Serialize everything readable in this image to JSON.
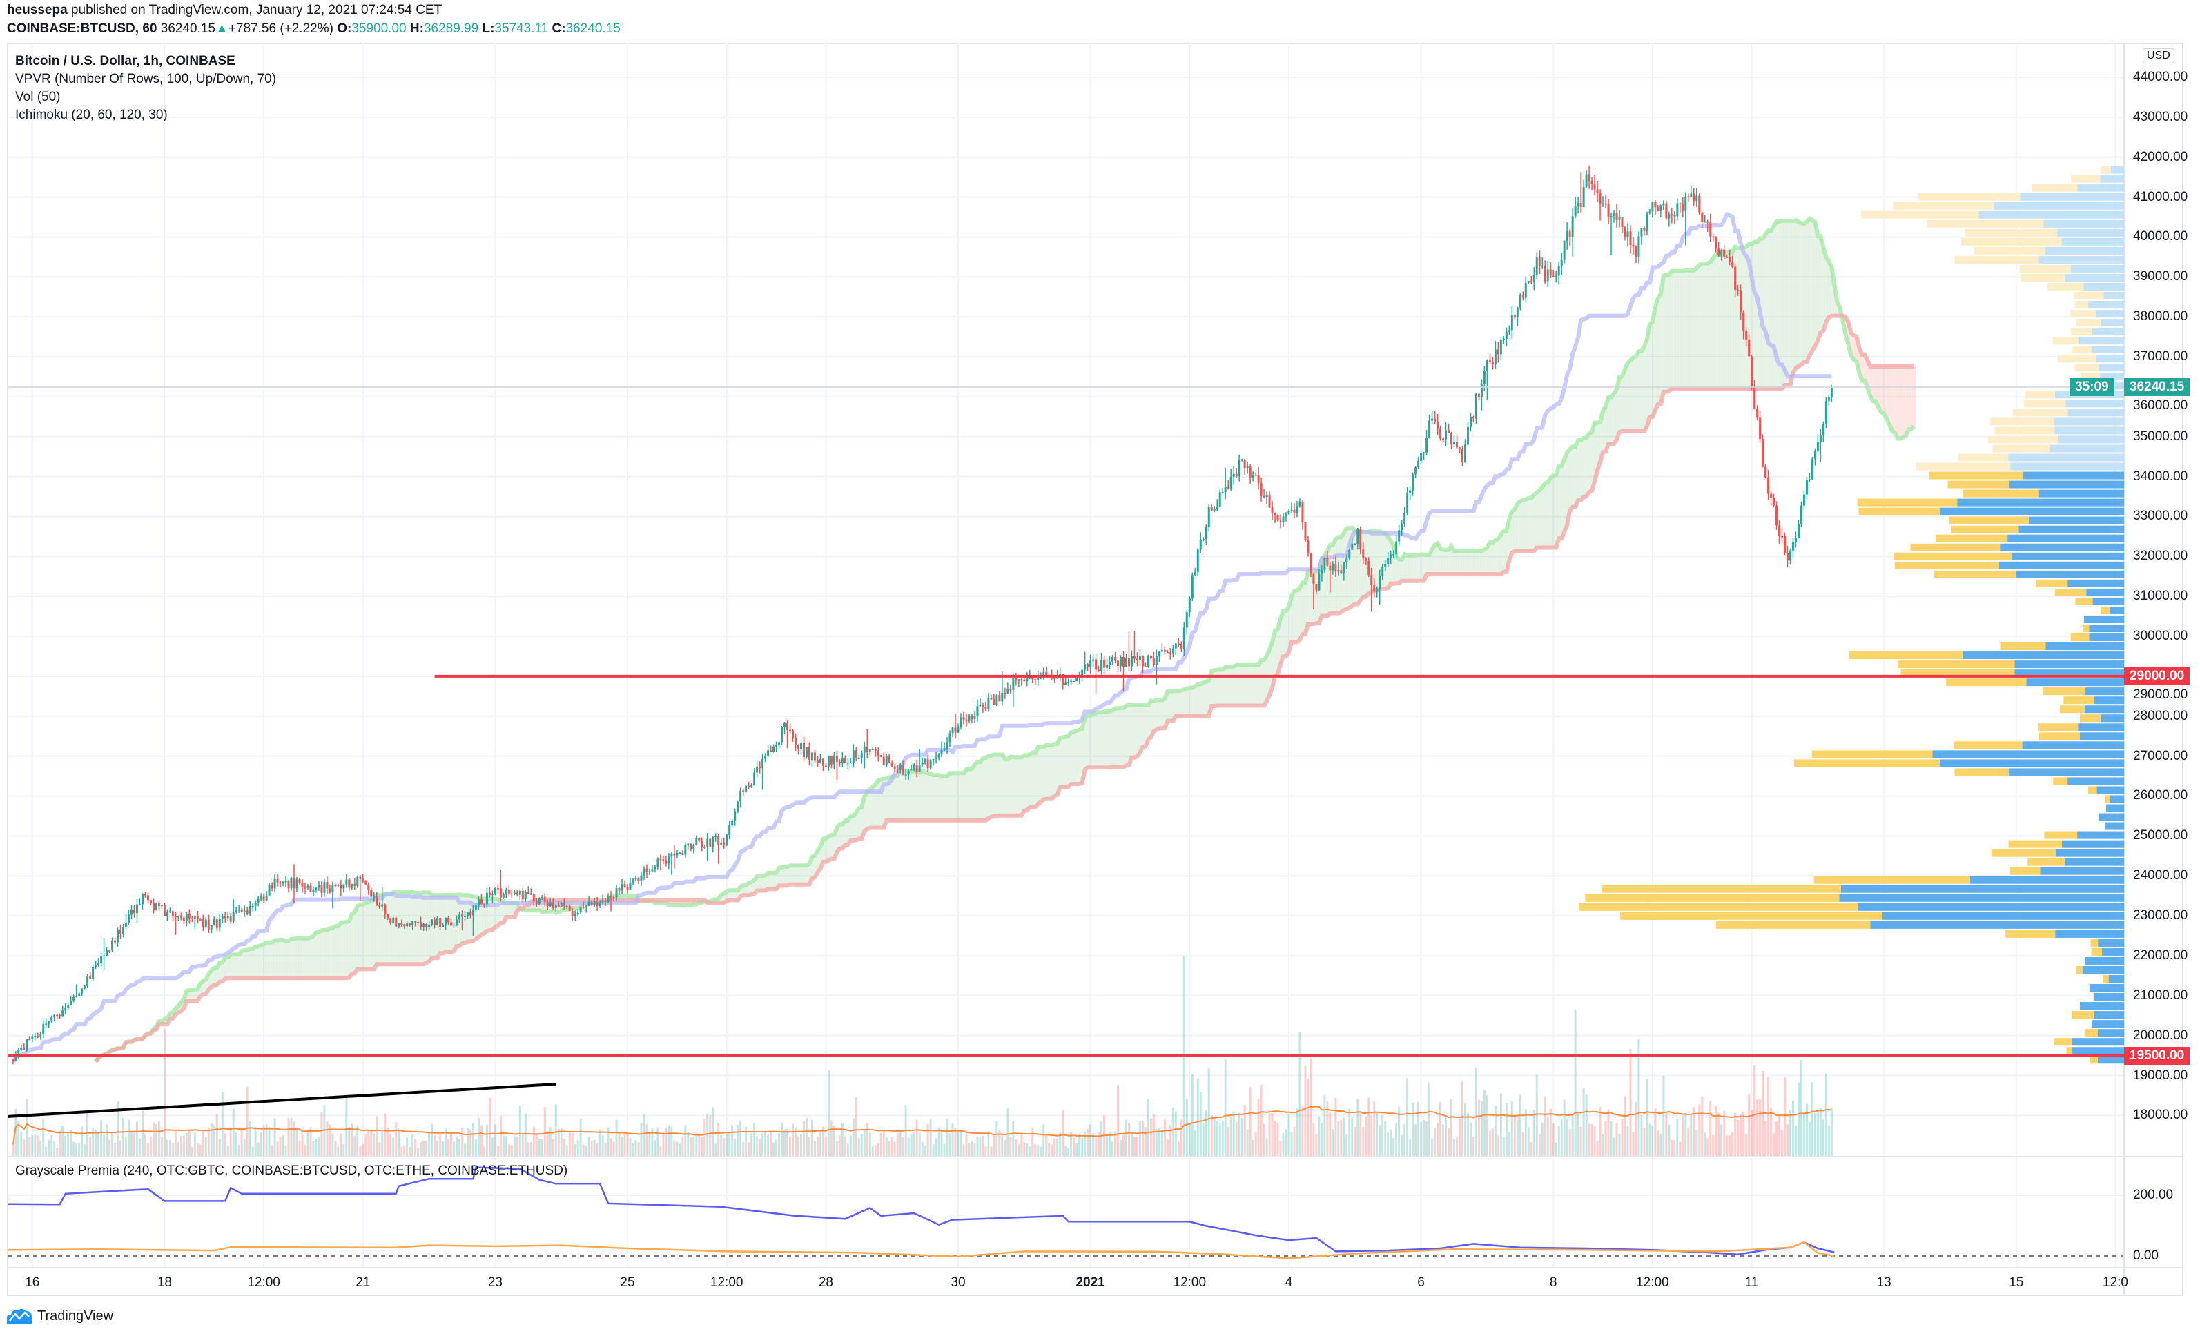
{
  "header": {
    "author": "heussepa",
    "published": " published on TradingView.com, January 12, 2021 07:24:54 CET",
    "symbol": "COINBASE:BTCUSD, 60",
    "last": "36240.15",
    "change": "+787.56 (+2.22%)",
    "o_label": "O:",
    "o": "35900.00",
    "h_label": "H:",
    "h": "36289.99",
    "l_label": "L:",
    "l": "35743.11",
    "c_label": "C:",
    "c": "36240.15"
  },
  "legend": {
    "title": "Bitcoin / U.S. Dollar, 1h, COINBASE",
    "vpvr": "VPVR (Number Of Rows, 100, Up/Down, 70)",
    "vol": "Vol (50)",
    "ichimoku": "Ichimoku (20, 60, 120, 30)",
    "sub": "Grayscale Premia (240, OTC:GBTC, COINBASE:BTCUSD, OTC:ETHE, COINBASE:ETHUSD)"
  },
  "currency": "USD",
  "branding": "TradingView",
  "colors": {
    "up": "#26a69a",
    "down": "#ef5350",
    "level": "#f23645",
    "vpvr_up": "#5dadec",
    "vpvr_down": "#fad46b",
    "vpvr_up_faded": "#c4e2f7",
    "vpvr_down_faded": "#fdeec9",
    "kijun": "#b2b5f8",
    "span_a": "#a5e8a5",
    "span_b": "#f4a9a6",
    "premia_btc": "#5b5bf5",
    "premia_eth": "#ffa94d",
    "vol_ma": "#ff8a3d",
    "trendline": "#000000"
  },
  "price_tags": {
    "last": "36240.15",
    "countdown": "35:09",
    "level_high": "29000.00",
    "level_low": "19500.00"
  },
  "chart_data": [
    {
      "type": "candlestick",
      "interval": "1h",
      "ylim": [
        17000,
        44500
      ],
      "price_ticks": [
        "18000.00",
        "19000.00",
        "20000.00",
        "21000.00",
        "22000.00",
        "23000.00",
        "24000.00",
        "25000.00",
        "26000.00",
        "27000.00",
        "28000.00",
        "29000.00",
        "30000.00",
        "31000.00",
        "32000.00",
        "33000.00",
        "34000.00",
        "35000.00",
        "36000.00",
        "37000.00",
        "38000.00",
        "39000.00",
        "40000.00",
        "41000.00",
        "42000.00",
        "43000.00",
        "44000.00"
      ],
      "time_ticks": [
        {
          "x": "2020-12-16T00:00",
          "label": "16"
        },
        {
          "x": "2020-12-18T00:00",
          "label": "18"
        },
        {
          "x": "2020-12-19T12:00",
          "label": "12:00"
        },
        {
          "x": "2020-12-21T00:00",
          "label": "21"
        },
        {
          "x": "2020-12-23T00:00",
          "label": "23"
        },
        {
          "x": "2020-12-25T00:00",
          "label": "25"
        },
        {
          "x": "2020-12-26T12:00",
          "label": "12:00"
        },
        {
          "x": "2020-12-28T00:00",
          "label": "28"
        },
        {
          "x": "2020-12-30T00:00",
          "label": "30"
        },
        {
          "x": "2021-01-01T00:00",
          "label": "2021"
        },
        {
          "x": "2021-01-02T12:00",
          "label": "12:00"
        },
        {
          "x": "2021-01-04T00:00",
          "label": "4"
        },
        {
          "x": "2021-01-06T00:00",
          "label": "6"
        },
        {
          "x": "2021-01-08T00:00",
          "label": "8"
        },
        {
          "x": "2021-01-09T12:00",
          "label": "12:00"
        },
        {
          "x": "2021-01-11T00:00",
          "label": "11"
        },
        {
          "x": "2021-01-13T00:00",
          "label": "13"
        },
        {
          "x": "2021-01-15T00:00",
          "label": "15"
        },
        {
          "x": "2021-01-16T12:00",
          "label": "12:0"
        }
      ],
      "close_path": [
        [
          "2020-12-15T17:00",
          19400
        ],
        [
          "2020-12-16T14:00",
          20800
        ],
        [
          "2020-12-17T00:00",
          21700
        ],
        [
          "2020-12-17T10:00",
          22750
        ],
        [
          "2020-12-17T17:00",
          23450
        ],
        [
          "2020-12-18T01:00",
          23100
        ],
        [
          "2020-12-18T17:00",
          22750
        ],
        [
          "2020-12-19T07:00",
          23100
        ],
        [
          "2020-12-19T18:00",
          23850
        ],
        [
          "2020-12-20T10:00",
          23700
        ],
        [
          "2020-12-21T00:00",
          23850
        ],
        [
          "2020-12-21T13:00",
          22750
        ],
        [
          "2020-12-21T22:00",
          22800
        ],
        [
          "2020-12-22T12:00",
          22900
        ],
        [
          "2020-12-23T00:00",
          23600
        ],
        [
          "2020-12-23T14:00",
          23450
        ],
        [
          "2020-12-24T05:00",
          23100
        ],
        [
          "2020-12-24T19:00",
          23450
        ],
        [
          "2020-12-25T12:00",
          24300
        ],
        [
          "2020-12-26T02:00",
          24850
        ],
        [
          "2020-12-26T12:00",
          24900
        ],
        [
          "2020-12-26T17:00",
          25900
        ],
        [
          "2020-12-27T02:00",
          26800
        ],
        [
          "2020-12-27T10:00",
          27700
        ],
        [
          "2020-12-27T17:00",
          27100
        ],
        [
          "2020-12-28T00:00",
          26800
        ],
        [
          "2020-12-28T16:00",
          27100
        ],
        [
          "2020-12-29T07:00",
          26600
        ],
        [
          "2020-12-29T17:00",
          26950
        ],
        [
          "2020-12-30T02:00",
          27850
        ],
        [
          "2020-12-30T13:00",
          28350
        ],
        [
          "2020-12-31T00:00",
          29050
        ],
        [
          "2020-12-31T14:00",
          28900
        ],
        [
          "2021-01-01T07:00",
          29400
        ],
        [
          "2021-01-01T22:00",
          29400
        ],
        [
          "2021-01-02T10:00",
          29750
        ],
        [
          "2021-01-02T14:00",
          31500
        ],
        [
          "2021-01-02T20:00",
          33100
        ],
        [
          "2021-01-03T07:00",
          34300
        ],
        [
          "2021-01-03T14:00",
          33800
        ],
        [
          "2021-01-03T22:00",
          32900
        ],
        [
          "2021-01-04T05:00",
          33450
        ],
        [
          "2021-01-04T10:00",
          31150
        ],
        [
          "2021-01-04T14:00",
          31900
        ],
        [
          "2021-01-04T20:00",
          31500
        ],
        [
          "2021-01-05T02:00",
          32600
        ],
        [
          "2021-01-05T07:00",
          31150
        ],
        [
          "2021-01-05T14:00",
          31900
        ],
        [
          "2021-01-05T22:00",
          34000
        ],
        [
          "2021-01-06T05:00",
          35400
        ],
        [
          "2021-01-06T16:00",
          34500
        ],
        [
          "2021-01-06T23:00",
          36450
        ],
        [
          "2021-01-07T07:00",
          37500
        ],
        [
          "2021-01-07T14:00",
          38550
        ],
        [
          "2021-01-07T19:00",
          39450
        ],
        [
          "2021-01-08T00:00",
          38900
        ],
        [
          "2021-01-08T05:00",
          39800
        ],
        [
          "2021-01-08T14:00",
          41550
        ],
        [
          "2021-01-08T19:00",
          40850
        ],
        [
          "2021-01-09T02:00",
          40300
        ],
        [
          "2021-01-09T07:00",
          39600
        ],
        [
          "2021-01-09T12:00",
          40850
        ],
        [
          "2021-01-09T20:00",
          40650
        ],
        [
          "2021-01-10T04:00",
          41000
        ],
        [
          "2021-01-10T12:00",
          39800
        ],
        [
          "2021-01-10T19:00",
          38900
        ],
        [
          "2021-01-11T00:00",
          36800
        ],
        [
          "2021-01-11T05:00",
          34300
        ],
        [
          "2021-01-11T10:00",
          32900
        ],
        [
          "2021-01-11T14:00",
          31900
        ],
        [
          "2021-01-11T18:00",
          32900
        ],
        [
          "2021-01-12T00:00",
          34700
        ],
        [
          "2021-01-12T06:00",
          36240.15
        ]
      ],
      "levels": [
        {
          "price": 29000,
          "from": "2020-12-22T02:00"
        },
        {
          "price": 19500,
          "from": "2020-12-15T14:00"
        }
      ],
      "trendline": [
        [
          "2020-12-15T15:00",
          17972
        ],
        [
          "2020-12-23T22:00",
          18784
        ]
      ]
    },
    {
      "type": "line",
      "title": "Grayscale Premia (240, OTC:GBTC, COINBASE:BTCUSD, OTC:ETHE, COINBASE:ETHUSD)",
      "y_ticks": [
        "200.00",
        "0.00"
      ],
      "series": [
        {
          "values": [
            [
              "2020-12-15T15:00",
              171
            ],
            [
              "2020-12-16T10:00",
              170
            ],
            [
              "2020-12-16T12:00",
              205
            ],
            [
              "2020-12-17T18:00",
              220
            ],
            [
              "2020-12-18T00:00",
              181
            ],
            [
              "2020-12-18T22:00",
              181
            ],
            [
              "2020-12-19T00:00",
              224
            ],
            [
              "2020-12-19T04:00",
              205
            ],
            [
              "2020-12-21T12:00",
              205
            ],
            [
              "2020-12-21T13:00",
              230
            ],
            [
              "2020-12-22T00:00",
              254
            ],
            [
              "2020-12-22T16:00",
              254
            ],
            [
              "2020-12-22T17:00",
              292
            ],
            [
              "2020-12-23T09:00",
              287
            ],
            [
              "2020-12-23T16:00",
              251
            ],
            [
              "2020-12-23T22:00",
              238
            ],
            [
              "2020-12-24T14:00",
              238
            ],
            [
              "2020-12-24T17:00",
              173
            ],
            [
              "2020-12-26T10:00",
              162
            ],
            [
              "2020-12-27T12:00",
              133
            ],
            [
              "2020-12-28T07:00",
              122
            ],
            [
              "2020-12-28T16:00",
              158
            ],
            [
              "2020-12-28T20:00",
              132
            ],
            [
              "2020-12-29T08:00",
              141
            ],
            [
              "2020-12-29T17:00",
              103
            ],
            [
              "2020-12-29T22:00",
              119
            ],
            [
              "2020-12-31T14:00",
              132
            ],
            [
              "2020-12-31T16:00",
              113
            ],
            [
              "2021-01-02T12:00",
              113
            ],
            [
              "2021-01-02T18:00",
              99
            ],
            [
              "2021-01-03T12:00",
              68
            ],
            [
              "2021-01-04T00:00",
              52
            ],
            [
              "2021-01-04T10:00",
              59
            ],
            [
              "2021-01-04T17:00",
              15
            ],
            [
              "2021-01-05T12:00",
              18
            ],
            [
              "2021-01-06T07:00",
              25
            ],
            [
              "2021-01-06T19:00",
              40
            ],
            [
              "2021-01-07T12:00",
              28
            ],
            [
              "2021-01-08T12:00",
              25
            ],
            [
              "2021-01-09T12:00",
              20
            ],
            [
              "2021-01-10T07:00",
              12
            ],
            [
              "2021-01-10T19:00",
              5
            ],
            [
              "2021-01-11T05:00",
              20
            ],
            [
              "2021-01-11T14:00",
              28
            ],
            [
              "2021-01-11T19:00",
              45
            ],
            [
              "2021-01-12T00:00",
              25
            ],
            [
              "2021-01-12T06:00",
              12
            ]
          ]
        },
        {
          "values": [
            [
              "2020-12-15T15:00",
              20
            ],
            [
              "2020-12-17T00:00",
              22
            ],
            [
              "2020-12-18T18:00",
              18
            ],
            [
              "2020-12-19T00:00",
              29
            ],
            [
              "2020-12-21T12:00",
              28
            ],
            [
              "2020-12-22T00:00",
              35
            ],
            [
              "2020-12-23T00:00",
              32
            ],
            [
              "2020-12-24T00:00",
              35
            ],
            [
              "2020-12-25T00:00",
              25
            ],
            [
              "2020-12-26T12:00",
              15
            ],
            [
              "2020-12-28T12:00",
              11
            ],
            [
              "2020-12-30T00:00",
              -2
            ],
            [
              "2020-12-31T00:00",
              15
            ],
            [
              "2021-01-02T00:00",
              14
            ],
            [
              "2021-01-03T00:00",
              6
            ],
            [
              "2021-01-04T00:00",
              -8
            ],
            [
              "2021-01-05T00:00",
              8
            ],
            [
              "2021-01-06T12:00",
              22
            ],
            [
              "2021-01-08T12:00",
              20
            ],
            [
              "2021-01-10T12:00",
              15
            ],
            [
              "2021-01-11T14:00",
              28
            ],
            [
              "2021-01-11T19:00",
              45
            ],
            [
              "2021-01-12T00:00",
              10
            ],
            [
              "2021-01-12T06:00",
              0
            ]
          ]
        }
      ]
    }
  ]
}
